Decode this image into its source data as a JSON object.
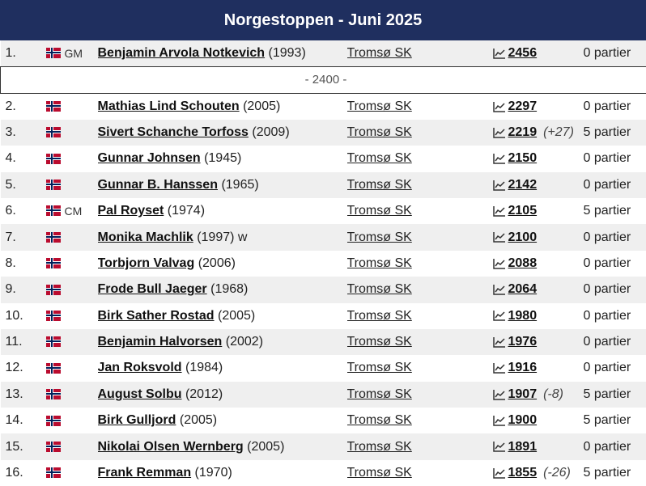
{
  "header": {
    "title": "Norgestoppen - Juni 2025"
  },
  "separator": "- 2400 -",
  "players": [
    {
      "rank": "1.",
      "title": "GM",
      "name": "Benjamin Arvola Notkevich",
      "year": "(1993)",
      "suffix": "",
      "club": "Tromsø SK",
      "rating": "2456",
      "change": "",
      "partier": "0 partier"
    },
    {
      "rank": "2.",
      "title": "",
      "name": "Mathias Lind Schouten",
      "year": "(2005)",
      "suffix": "",
      "club": "Tromsø SK",
      "rating": "2297",
      "change": "",
      "partier": "0 partier"
    },
    {
      "rank": "3.",
      "title": "",
      "name": "Sivert Schanche Torfoss",
      "year": "(2009)",
      "suffix": "",
      "club": "Tromsø SK",
      "rating": "2219",
      "change": "(+27)",
      "partier": "5 partier"
    },
    {
      "rank": "4.",
      "title": "",
      "name": "Gunnar Johnsen",
      "year": "(1945)",
      "suffix": "",
      "club": "Tromsø SK",
      "rating": "2150",
      "change": "",
      "partier": "0 partier"
    },
    {
      "rank": "5.",
      "title": "",
      "name": "Gunnar B. Hanssen",
      "year": "(1965)",
      "suffix": "",
      "club": "Tromsø SK",
      "rating": "2142",
      "change": "",
      "partier": "0 partier"
    },
    {
      "rank": "6.",
      "title": "CM",
      "name": "Pal Royset",
      "year": "(1974)",
      "suffix": "",
      "club": "Tromsø SK",
      "rating": "2105",
      "change": "",
      "partier": "5 partier"
    },
    {
      "rank": "7.",
      "title": "",
      "name": "Monika Machlik",
      "year": "(1997)",
      "suffix": "w",
      "club": "Tromsø SK",
      "rating": "2100",
      "change": "",
      "partier": "0 partier"
    },
    {
      "rank": "8.",
      "title": "",
      "name": "Torbjorn Valvag",
      "year": "(2006)",
      "suffix": "",
      "club": "Tromsø SK",
      "rating": "2088",
      "change": "",
      "partier": "0 partier"
    },
    {
      "rank": "9.",
      "title": "",
      "name": "Frode Bull Jaeger",
      "year": "(1968)",
      "suffix": "",
      "club": "Tromsø SK",
      "rating": "2064",
      "change": "",
      "partier": "0 partier"
    },
    {
      "rank": "10.",
      "title": "",
      "name": "Birk Sather Rostad",
      "year": "(2005)",
      "suffix": "",
      "club": "Tromsø SK",
      "rating": "1980",
      "change": "",
      "partier": "0 partier"
    },
    {
      "rank": "11.",
      "title": "",
      "name": "Benjamin Halvorsen",
      "year": "(2002)",
      "suffix": "",
      "club": "Tromsø SK",
      "rating": "1976",
      "change": "",
      "partier": "0 partier"
    },
    {
      "rank": "12.",
      "title": "",
      "name": "Jan Roksvold",
      "year": "(1984)",
      "suffix": "",
      "club": "Tromsø SK",
      "rating": "1916",
      "change": "",
      "partier": "0 partier"
    },
    {
      "rank": "13.",
      "title": "",
      "name": "August Solbu",
      "year": "(2012)",
      "suffix": "",
      "club": "Tromsø SK",
      "rating": "1907",
      "change": "(-8)",
      "partier": "5 partier"
    },
    {
      "rank": "14.",
      "title": "",
      "name": "Birk Gulljord",
      "year": "(2005)",
      "suffix": "",
      "club": "Tromsø SK",
      "rating": "1900",
      "change": "",
      "partier": "5 partier"
    },
    {
      "rank": "15.",
      "title": "",
      "name": "Nikolai Olsen Wernberg",
      "year": "(2005)",
      "suffix": "",
      "club": "Tromsø SK",
      "rating": "1891",
      "change": "",
      "partier": "0 partier"
    },
    {
      "rank": "16.",
      "title": "",
      "name": "Frank Remman",
      "year": "(1970)",
      "suffix": "",
      "club": "Tromsø SK",
      "rating": "1855",
      "change": "(-26)",
      "partier": "5 partier"
    }
  ],
  "icons": {
    "flag": "norway-flag-icon",
    "rating_chart": "line-chart-icon"
  },
  "colors": {
    "header_bg": "#1f2f5f",
    "row_alt": "#efefef",
    "flag_red": "#ba0c2f",
    "flag_blue": "#00205b"
  }
}
